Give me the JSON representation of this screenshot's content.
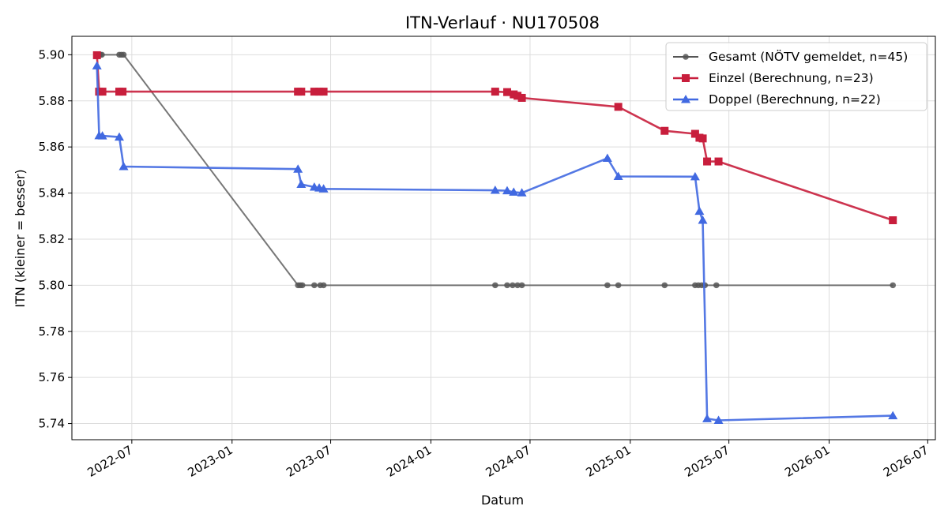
{
  "chart_data": {
    "type": "line",
    "title": "ITN-Verlauf · NU170508",
    "xlabel": "Datum",
    "ylabel": "ITN  (kleiner = besser)",
    "x_type": "date",
    "xlim": [
      "2022-03-13",
      "2026-07-15"
    ],
    "ylim": [
      5.733,
      5.908
    ],
    "x_ticks": [
      "2022-07-01",
      "2023-01-01",
      "2023-07-01",
      "2024-01-01",
      "2024-07-01",
      "2025-01-01",
      "2025-07-01",
      "2026-01-01",
      "2026-07-01"
    ],
    "x_tick_labels": [
      "2022-07",
      "2023-01",
      "2023-07",
      "2024-01",
      "2024-07",
      "2025-01",
      "2025-07",
      "2026-01",
      "2026-07"
    ],
    "y_ticks": [
      5.74,
      5.76,
      5.78,
      5.8,
      5.82,
      5.84,
      5.86,
      5.88,
      5.9
    ],
    "y_tick_labels": [
      "5.74",
      "5.76",
      "5.78",
      "5.80",
      "5.82",
      "5.84",
      "5.86",
      "5.88",
      "5.90"
    ],
    "grid": true,
    "legend_position": "top-right",
    "series": [
      {
        "name": "Gesamt (NÖTV gemeldet, n=45)",
        "color": "#555555",
        "marker": "circle",
        "points": [
          {
            "x": "2022-04-28",
            "y": 5.9
          },
          {
            "x": "2022-04-30",
            "y": 5.9
          },
          {
            "x": "2022-05-02",
            "y": 5.9
          },
          {
            "x": "2022-05-04",
            "y": 5.9
          },
          {
            "x": "2022-05-07",
            "y": 5.9
          },
          {
            "x": "2022-06-08",
            "y": 5.9
          },
          {
            "x": "2022-06-12",
            "y": 5.9
          },
          {
            "x": "2022-06-16",
            "y": 5.9
          },
          {
            "x": "2023-05-02",
            "y": 5.8
          },
          {
            "x": "2023-05-06",
            "y": 5.8
          },
          {
            "x": "2023-05-10",
            "y": 5.8
          },
          {
            "x": "2023-06-01",
            "y": 5.8
          },
          {
            "x": "2023-06-12",
            "y": 5.8
          },
          {
            "x": "2023-06-18",
            "y": 5.8
          },
          {
            "x": "2024-04-28",
            "y": 5.8
          },
          {
            "x": "2024-05-20",
            "y": 5.8
          },
          {
            "x": "2024-05-30",
            "y": 5.8
          },
          {
            "x": "2024-06-08",
            "y": 5.8
          },
          {
            "x": "2024-06-16",
            "y": 5.8
          },
          {
            "x": "2024-11-20",
            "y": 5.8
          },
          {
            "x": "2024-12-10",
            "y": 5.8
          },
          {
            "x": "2025-03-05",
            "y": 5.8
          },
          {
            "x": "2025-04-30",
            "y": 5.8
          },
          {
            "x": "2025-05-06",
            "y": 5.8
          },
          {
            "x": "2025-05-12",
            "y": 5.8
          },
          {
            "x": "2025-05-18",
            "y": 5.8
          },
          {
            "x": "2025-06-08",
            "y": 5.8
          },
          {
            "x": "2026-04-28",
            "y": 5.8
          }
        ]
      },
      {
        "name": "Einzel (Berechnung, n=23)",
        "color": "#c81e3c",
        "marker": "square",
        "points": [
          {
            "x": "2022-04-28",
            "y": 5.8998
          },
          {
            "x": "2022-05-02",
            "y": 5.884
          },
          {
            "x": "2022-05-08",
            "y": 5.884
          },
          {
            "x": "2022-06-08",
            "y": 5.884
          },
          {
            "x": "2022-06-14",
            "y": 5.884
          },
          {
            "x": "2023-05-02",
            "y": 5.884
          },
          {
            "x": "2023-05-08",
            "y": 5.884
          },
          {
            "x": "2023-06-01",
            "y": 5.884
          },
          {
            "x": "2023-06-10",
            "y": 5.884
          },
          {
            "x": "2023-06-18",
            "y": 5.884
          },
          {
            "x": "2024-04-28",
            "y": 5.884
          },
          {
            "x": "2024-05-20",
            "y": 5.8838
          },
          {
            "x": "2024-06-01",
            "y": 5.8828
          },
          {
            "x": "2024-06-08",
            "y": 5.8822
          },
          {
            "x": "2024-06-16",
            "y": 5.8813
          },
          {
            "x": "2024-12-10",
            "y": 5.8774
          },
          {
            "x": "2025-03-05",
            "y": 5.867
          },
          {
            "x": "2025-04-30",
            "y": 5.8657
          },
          {
            "x": "2025-05-08",
            "y": 5.864
          },
          {
            "x": "2025-05-14",
            "y": 5.8637
          },
          {
            "x": "2025-05-22",
            "y": 5.8537
          },
          {
            "x": "2025-06-12",
            "y": 5.8537
          },
          {
            "x": "2026-04-28",
            "y": 5.8282
          }
        ]
      },
      {
        "name": "Doppel (Berechnung, n=22)",
        "color": "#4169e1",
        "marker": "triangle",
        "points": [
          {
            "x": "2022-04-28",
            "y": 5.8952
          },
          {
            "x": "2022-05-02",
            "y": 5.8649
          },
          {
            "x": "2022-05-08",
            "y": 5.8648
          },
          {
            "x": "2022-06-08",
            "y": 5.8643
          },
          {
            "x": "2022-06-16",
            "y": 5.8515
          },
          {
            "x": "2023-05-02",
            "y": 5.8504
          },
          {
            "x": "2023-05-08",
            "y": 5.8438
          },
          {
            "x": "2023-06-01",
            "y": 5.8426
          },
          {
            "x": "2023-06-10",
            "y": 5.8422
          },
          {
            "x": "2023-06-18",
            "y": 5.8418
          },
          {
            "x": "2024-04-28",
            "y": 5.8412
          },
          {
            "x": "2024-05-20",
            "y": 5.841
          },
          {
            "x": "2024-06-01",
            "y": 5.8404
          },
          {
            "x": "2024-06-16",
            "y": 5.8401
          },
          {
            "x": "2024-11-20",
            "y": 5.8551
          },
          {
            "x": "2024-12-10",
            "y": 5.8472
          },
          {
            "x": "2025-04-30",
            "y": 5.8471
          },
          {
            "x": "2025-05-08",
            "y": 5.8321
          },
          {
            "x": "2025-05-14",
            "y": 5.8282
          },
          {
            "x": "2025-05-22",
            "y": 5.7421
          },
          {
            "x": "2025-06-12",
            "y": 5.7414
          },
          {
            "x": "2026-04-28",
            "y": 5.7434
          }
        ]
      }
    ]
  }
}
